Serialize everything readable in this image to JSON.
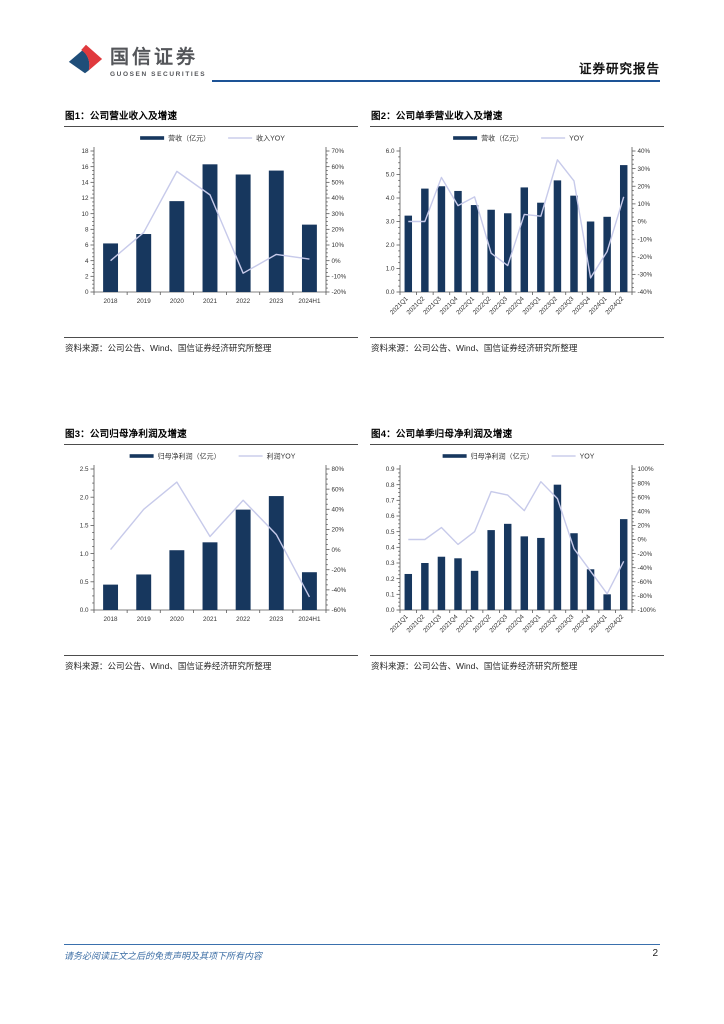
{
  "header": {
    "brand_cn": "国信证券",
    "brand_en": "GUOSEN SECURITIES",
    "report_type": "证券研究报告"
  },
  "footer": {
    "disclaimer": "请务必阅读正文之后的免责声明及其项下所有内容",
    "page_number": "2"
  },
  "colors": {
    "bar": "#17375e",
    "line": "#c7caea",
    "axis": "#595959",
    "tick_text": "#333333",
    "header_rule": "#1d5396",
    "footer_rule": "#3a70ad",
    "logo_red": "#e0393d",
    "logo_blue": "#1f4e79"
  },
  "chart_data": [
    {
      "type": "bar",
      "title": "图1：公司营业收入及增速",
      "source": "资料来源：公司公告、Wind、国信证券经济研究所整理",
      "legend": [
        {
          "name": "营收（亿元）",
          "kind": "bar"
        },
        {
          "name": "收入YOY",
          "kind": "line"
        }
      ],
      "categories": [
        "2018",
        "2019",
        "2020",
        "2021",
        "2022",
        "2023",
        "2024H1"
      ],
      "series": [
        {
          "name": "营收（亿元）",
          "type": "bar",
          "axis": "left",
          "values": [
            6.2,
            7.4,
            11.6,
            16.3,
            15.0,
            15.5,
            8.6
          ]
        },
        {
          "name": "收入YOY",
          "type": "line",
          "axis": "right",
          "values": [
            0,
            18,
            57,
            42,
            -8,
            4,
            1
          ]
        }
      ],
      "left_axis": {
        "min": 0,
        "max": 18,
        "step": 2,
        "decimals": 0
      },
      "right_axis": {
        "min": -20,
        "max": 70,
        "step": 10,
        "format": "percent"
      },
      "rotated_labels": false,
      "grid": false,
      "legend_position": "top"
    },
    {
      "type": "bar",
      "title": "图2：公司单季营业收入及增速",
      "source": "资料来源：公司公告、Wind、国信证券经济研究所整理",
      "legend": [
        {
          "name": "营收（亿元）",
          "kind": "bar"
        },
        {
          "name": "YOY",
          "kind": "line"
        }
      ],
      "categories": [
        "2021Q1",
        "2021Q2",
        "2021Q3",
        "2021Q4",
        "2022Q1",
        "2022Q2",
        "2022Q3",
        "2022Q4",
        "2023Q1",
        "2023Q2",
        "2023Q3",
        "2023Q4",
        "2024Q1",
        "2024Q2"
      ],
      "series": [
        {
          "name": "营收（亿元）",
          "type": "bar",
          "axis": "left",
          "values": [
            3.25,
            4.4,
            4.5,
            4.3,
            3.7,
            3.5,
            3.35,
            4.45,
            3.8,
            4.75,
            4.1,
            3.0,
            3.2,
            5.4
          ]
        },
        {
          "name": "YOY",
          "type": "line",
          "axis": "right",
          "values": [
            0,
            0,
            25,
            9,
            14,
            -18,
            -25,
            4,
            3,
            35,
            23,
            -32,
            -17,
            14
          ]
        }
      ],
      "left_axis": {
        "min": 0,
        "max": 6,
        "step": 1,
        "decimals": 1
      },
      "right_axis": {
        "min": -40,
        "max": 40,
        "step": 10,
        "format": "percent"
      },
      "rotated_labels": true,
      "grid": false,
      "legend_position": "top"
    },
    {
      "type": "bar",
      "title": "图3：公司归母净利润及增速",
      "source": "资料来源：公司公告、Wind、国信证券经济研究所整理",
      "legend": [
        {
          "name": "归母净利润（亿元）",
          "kind": "bar"
        },
        {
          "name": "利润YOY",
          "kind": "line"
        }
      ],
      "categories": [
        "2018",
        "2019",
        "2020",
        "2021",
        "2022",
        "2023",
        "2024H1"
      ],
      "series": [
        {
          "name": "归母净利润（亿元）",
          "type": "bar",
          "axis": "left",
          "values": [
            0.45,
            0.63,
            1.06,
            1.2,
            1.78,
            2.02,
            0.67
          ]
        },
        {
          "name": "利润YOY",
          "type": "line",
          "axis": "right",
          "values": [
            0,
            40,
            67,
            13,
            49,
            15,
            -47
          ]
        }
      ],
      "left_axis": {
        "min": 0,
        "max": 2.5,
        "step": 0.5,
        "decimals": 1
      },
      "right_axis": {
        "min": -60,
        "max": 80,
        "step": 20,
        "format": "percent"
      },
      "rotated_labels": false,
      "grid": false,
      "legend_position": "top"
    },
    {
      "type": "bar",
      "title": "图4：公司单季归母净利润及增速",
      "source": "资料来源：公司公告、Wind、国信证券经济研究所整理",
      "legend": [
        {
          "name": "归母净利润（亿元）",
          "kind": "bar"
        },
        {
          "name": "YOY",
          "kind": "line"
        }
      ],
      "categories": [
        "2021Q1",
        "2021Q2",
        "2021Q3",
        "2021Q4",
        "2022Q1",
        "2022Q2",
        "2022Q3",
        "2022Q4",
        "2023Q1",
        "2023Q2",
        "2023Q3",
        "2023Q4",
        "2024Q1",
        "2024Q2"
      ],
      "series": [
        {
          "name": "归母净利润（亿元）",
          "type": "bar",
          "axis": "left",
          "values": [
            0.23,
            0.3,
            0.34,
            0.33,
            0.25,
            0.51,
            0.55,
            0.47,
            0.46,
            0.8,
            0.49,
            0.26,
            0.1,
            0.58
          ]
        },
        {
          "name": "YOY",
          "type": "line",
          "axis": "right",
          "values": [
            0,
            0,
            17,
            -7,
            11,
            68,
            63,
            41,
            82,
            58,
            -13,
            -45,
            -77,
            -31
          ]
        }
      ],
      "left_axis": {
        "min": 0,
        "max": 0.9,
        "step": 0.1,
        "decimals": 1
      },
      "right_axis": {
        "min": -100,
        "max": 100,
        "step": 20,
        "format": "percent"
      },
      "rotated_labels": true,
      "grid": false,
      "legend_position": "top"
    }
  ]
}
